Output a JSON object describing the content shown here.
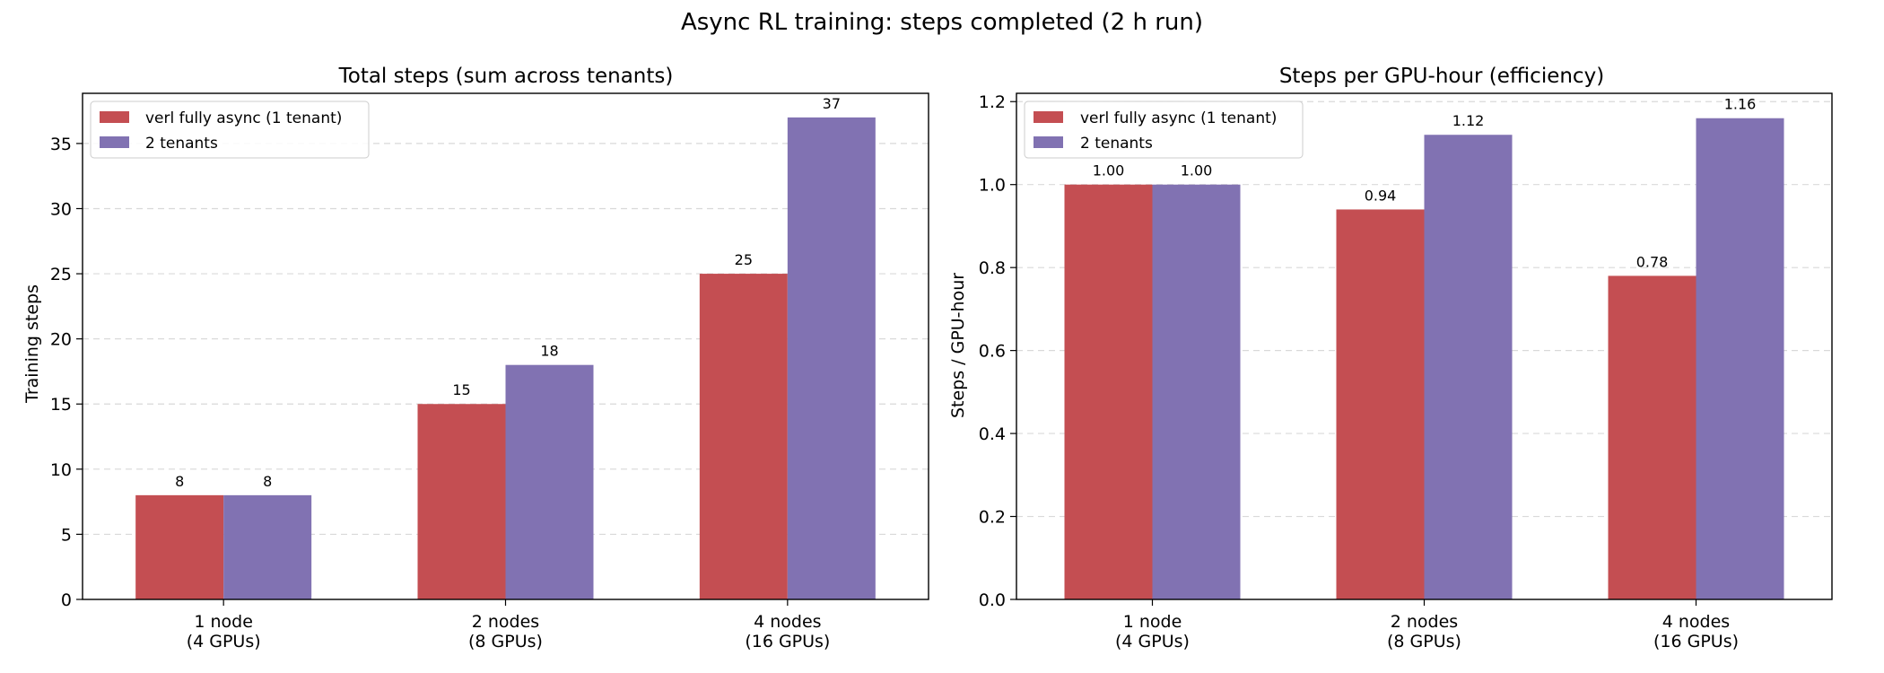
{
  "figure": {
    "title": "Async RL training: steps completed (2 h run)"
  },
  "colors": {
    "series_1": "#c44e52",
    "series_2": "#8172b2",
    "grid": "#d9d9d9"
  },
  "chart_data": [
    {
      "type": "bar",
      "title": "Total steps (sum across tenants)",
      "xlabel": "",
      "ylabel": "Training steps",
      "ylim": [
        0,
        38.85
      ],
      "yticks": [
        0,
        5,
        10,
        15,
        20,
        25,
        30,
        35
      ],
      "ytick_decimals": 0,
      "grid": "y-dashed",
      "legend": "top-left",
      "categories": [
        "1 node\n(4 GPUs)",
        "2 nodes\n(8 GPUs)",
        "4 nodes\n(16 GPUs)"
      ],
      "series": [
        {
          "name": "verl fully async (1 tenant)",
          "values": [
            8,
            15,
            25
          ],
          "labels": [
            "8",
            "15",
            "25"
          ]
        },
        {
          "name": "2 tenants",
          "values": [
            8,
            18,
            37
          ],
          "labels": [
            "8",
            "18",
            "37"
          ]
        }
      ]
    },
    {
      "type": "bar",
      "title": "Steps per GPU-hour (efficiency)",
      "xlabel": "",
      "ylabel": "Steps / GPU-hour",
      "ylim": [
        0,
        1.22
      ],
      "yticks": [
        0.0,
        0.2,
        0.4,
        0.6,
        0.8,
        1.0,
        1.2
      ],
      "ytick_decimals": 1,
      "grid": "y-dashed",
      "legend": "top-left",
      "categories": [
        "1 node\n(4 GPUs)",
        "2 nodes\n(8 GPUs)",
        "4 nodes\n(16 GPUs)"
      ],
      "series": [
        {
          "name": "verl fully async (1 tenant)",
          "values": [
            1.0,
            0.94,
            0.78
          ],
          "labels": [
            "1.00",
            "0.94",
            "0.78"
          ]
        },
        {
          "name": "2 tenants",
          "values": [
            1.0,
            1.12,
            1.16
          ],
          "labels": [
            "1.00",
            "1.12",
            "1.16"
          ]
        }
      ]
    }
  ]
}
